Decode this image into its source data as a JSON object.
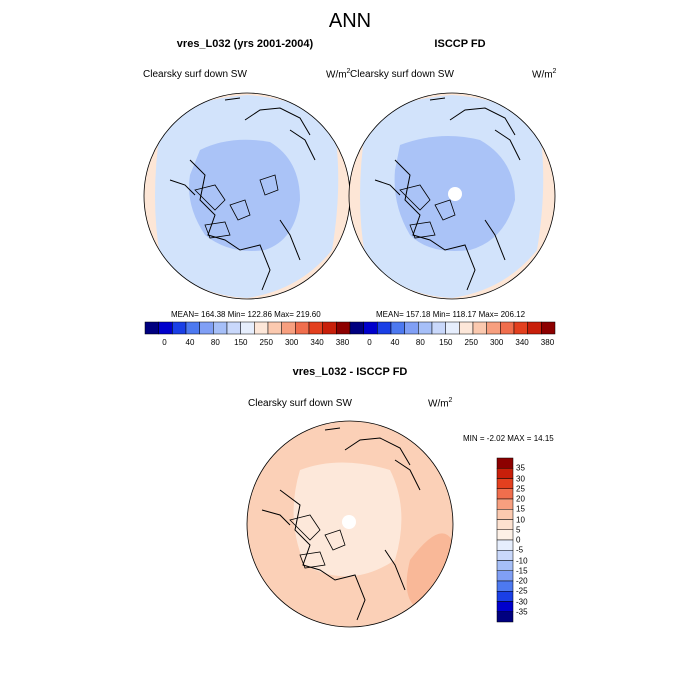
{
  "main_title": "ANN",
  "panels": [
    {
      "title": "vres_L032 (yrs 2001-2004)",
      "variable": "Clearsky surf down SW",
      "units": "W/m",
      "units_exp": "2",
      "stats": "MEAN= 164.38  Min= 122.86  Max= 219.60"
    },
    {
      "title": "ISCCP FD",
      "variable": "Clearsky surf down SW",
      "units": "W/m",
      "units_exp": "2",
      "stats": "MEAN= 157.18  Min= 118.17  Max= 206.12"
    },
    {
      "title": "vres_L032 - ISCCP FD",
      "variable": "Clearsky surf down SW",
      "units": "W/m",
      "units_exp": "2",
      "stats": "MIN =  -2.02 MAX =  14.15"
    }
  ],
  "colorbar_abs": {
    "labels": [
      "0",
      "40",
      "80",
      "150",
      "250",
      "300",
      "340",
      "380"
    ],
    "colors": [
      "#00007f",
      "#0000cc",
      "#1a3fe6",
      "#4d79f0",
      "#809ff5",
      "#a6bff8",
      "#c9d8fb",
      "#e6eefd",
      "#fde7d9",
      "#fbc9af",
      "#f79f7f",
      "#f06e4d",
      "#e3401f",
      "#c81f0a",
      "#8c0000"
    ]
  },
  "colorbar_diff": {
    "labels": [
      "35",
      "30",
      "25",
      "20",
      "15",
      "10",
      "5",
      "0",
      "-5",
      "-10",
      "-15",
      "-20",
      "-25",
      "-30",
      "-35"
    ],
    "colors_top_to_bottom": [
      "#8c0000",
      "#c81f0a",
      "#e3401f",
      "#f06e4d",
      "#f79f7f",
      "#fbc9af",
      "#fde1cf",
      "#fdf0e6",
      "#e6eefd",
      "#c9d8fb",
      "#a6bff8",
      "#809ff5",
      "#4d79f0",
      "#1a3fe6",
      "#0000cc",
      "#00007f"
    ]
  },
  "map_colors": {
    "outer_ring": "#fde6d6",
    "mid_field": "#d2e3fb",
    "inner_field": "#aac3f7",
    "diff_base": "#fbd0b7",
    "diff_light": "#fde8da",
    "diff_dark": "#f9b898",
    "missing": "#ffffff"
  }
}
